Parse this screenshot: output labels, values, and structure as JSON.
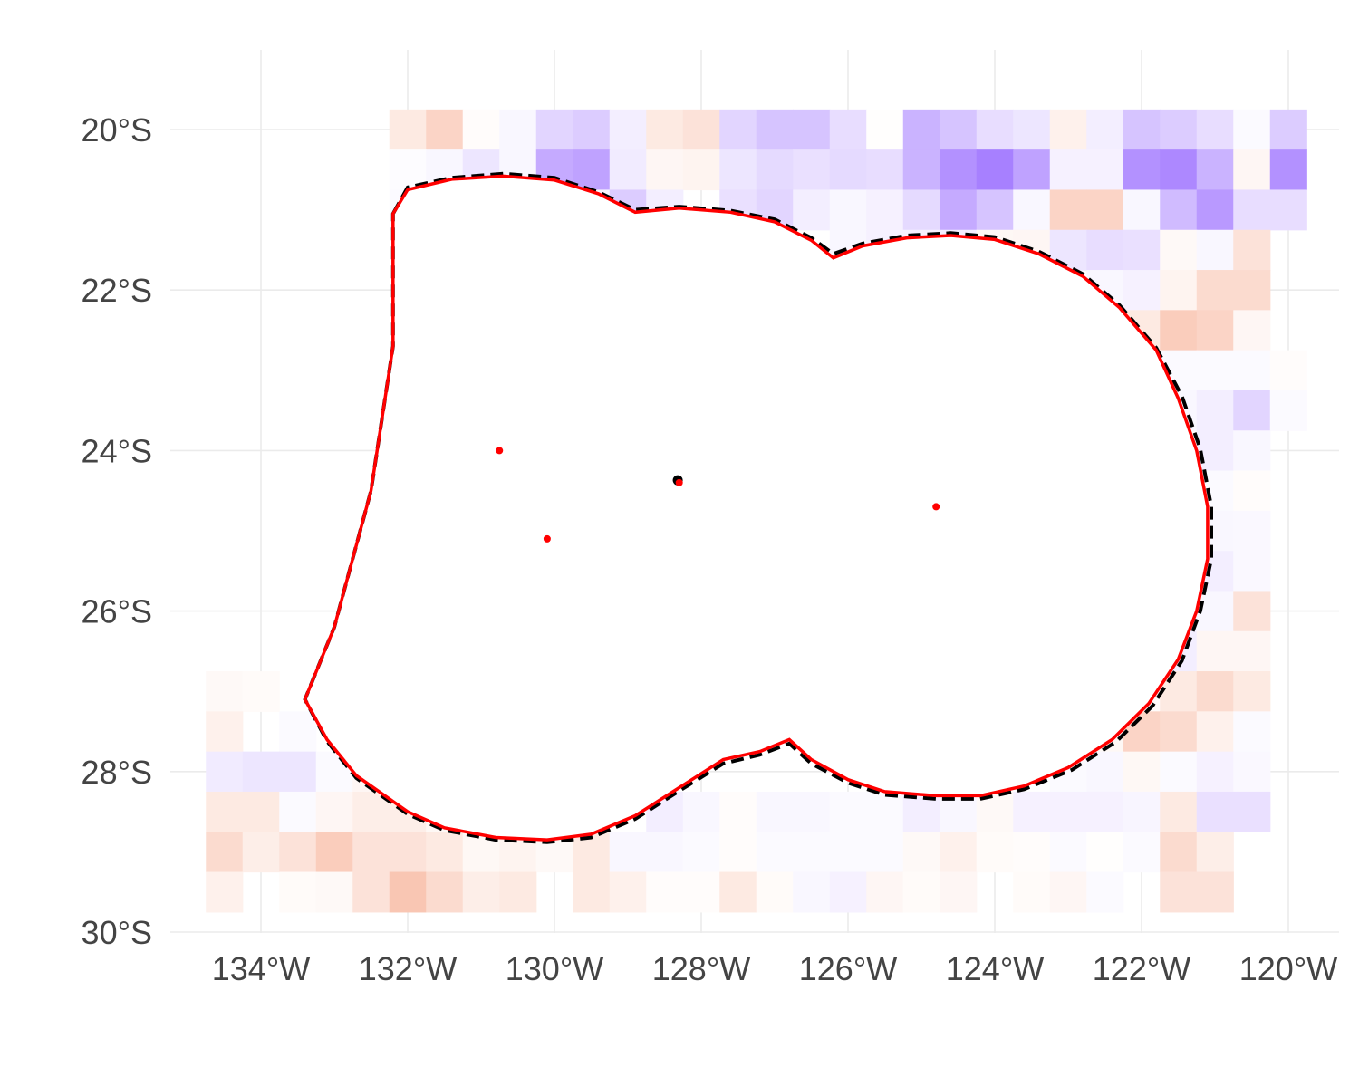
{
  "map": {
    "lon_range": [
      -135.2,
      -119.3
    ],
    "lat_range": [
      -30,
      -18.8
    ],
    "grid_lines": true,
    "colors": {
      "grid": "#ebebeb",
      "positive": "#f07040",
      "negative": "#8a55ff",
      "boundary": "#ff0000",
      "reference": "#000000"
    },
    "x_ticks": [
      {
        "value": -134,
        "label": "134°W"
      },
      {
        "value": -132,
        "label": "132°W"
      },
      {
        "value": -130,
        "label": "130°W"
      },
      {
        "value": -128,
        "label": "128°W"
      },
      {
        "value": -126,
        "label": "126°W"
      },
      {
        "value": -124,
        "label": "124°W"
      },
      {
        "value": -122,
        "label": "122°W"
      },
      {
        "value": -120,
        "label": "120°W"
      }
    ],
    "y_ticks": [
      {
        "value": -20,
        "label": "20°S"
      },
      {
        "value": -22,
        "label": "22°S"
      },
      {
        "value": -24,
        "label": "24°S"
      },
      {
        "value": -26,
        "label": "26°S"
      },
      {
        "value": -28,
        "label": "28°S"
      },
      {
        "value": -30,
        "label": "30°S"
      }
    ],
    "raster_rows": [
      {
        "lat": -20,
        "lon_start": -132,
        "values": [
          0.15,
          0.3,
          0.02,
          -0.05,
          -0.25,
          -0.3,
          -0.1,
          0.15,
          0.2,
          -0.25,
          -0.35,
          -0.35,
          -0.2,
          0.01,
          -0.45,
          -0.35,
          -0.2,
          -0.15,
          0.1,
          -0.1,
          -0.35,
          -0.3,
          -0.2,
          -0.03,
          -0.3
        ]
      },
      {
        "lat": -20.5,
        "lon_start": -132,
        "values": [
          -0.02,
          -0.05,
          -0.15,
          -0.05,
          -0.5,
          -0.55,
          -0.12,
          0.06,
          0.08,
          -0.15,
          -0.22,
          -0.18,
          -0.22,
          -0.2,
          -0.45,
          -0.65,
          -0.75,
          -0.55,
          -0.08,
          -0.08,
          -0.65,
          -0.7,
          -0.45,
          0.06,
          -0.65
        ]
      },
      {
        "lat": -21,
        "lon_start": -132,
        "values": [
          -0.03,
          -0.03,
          -0.03,
          null,
          -0.05,
          -0.05,
          -0.3,
          -0.1,
          null,
          -0.18,
          -0.25,
          -0.1,
          -0.05,
          -0.08,
          -0.22,
          -0.5,
          -0.35,
          -0.05,
          0.3,
          0.3,
          -0.05,
          -0.4,
          -0.6,
          -0.2,
          -0.2
        ]
      },
      {
        "lat": -21.5,
        "lon_start": -126,
        "values": [
          -0.05,
          -0.08,
          -0.08,
          -0.1,
          0.05,
          0.06,
          -0.15,
          -0.2,
          -0.18,
          0.04,
          -0.05,
          0.2
        ]
      },
      {
        "lat": -22,
        "lon_start": -122.5,
        "values": [
          -0.05,
          -0.08,
          0.08,
          0.25,
          0.25
        ]
      },
      {
        "lat": -22.5,
        "lon_start": -122,
        "values": [
          0.15,
          0.35,
          0.3,
          0.06
        ]
      },
      {
        "lat": -23,
        "lon_start": -121.5,
        "values": [
          -0.03,
          -0.03,
          -0.03,
          0.02
        ]
      },
      {
        "lat": -23.5,
        "lon_start": -121.5,
        "values": [
          -0.05,
          -0.1,
          -0.25,
          -0.03
        ]
      },
      {
        "lat": -24,
        "lon_start": -121,
        "values": [
          -0.1,
          -0.05
        ]
      },
      {
        "lat": -24.5,
        "lon_start": -121,
        "values": [
          -0.03,
          0.02
        ]
      },
      {
        "lat": -25,
        "lon_start": -121,
        "values": [
          -0.05,
          -0.04
        ]
      },
      {
        "lat": -25.5,
        "lon_start": -121,
        "values": [
          -0.1,
          -0.04
        ]
      },
      {
        "lat": -26,
        "lon_start": -121.5,
        "values": [
          -0.06,
          -0.05,
          0.2
        ]
      },
      {
        "lat": -26.5,
        "lon_start": -121.5,
        "values": [
          -0.1,
          0.06,
          0.06
        ]
      },
      {
        "lat": -27,
        "lon_start": -134.5,
        "values": [
          0.04,
          0.03
        ]
      },
      {
        "lat": -27,
        "lon_start": -122.5,
        "values": [
          0.03,
          0.02,
          0.15,
          0.25,
          0.15
        ]
      },
      {
        "lat": -27.5,
        "lon_start": -134.5,
        "values": [
          0.1,
          null,
          -0.03
        ]
      },
      {
        "lat": -27.5,
        "lon_start": -122.5,
        "values": [
          0.05,
          0.3,
          0.25,
          0.1,
          -0.03
        ]
      },
      {
        "lat": -28,
        "lon_start": -134.5,
        "values": [
          -0.12,
          -0.15,
          -0.15,
          -0.03,
          0.06
        ]
      },
      {
        "lat": -28,
        "lon_start": -123,
        "values": [
          -0.03,
          -0.05,
          0.05,
          -0.03,
          -0.08,
          -0.04
        ]
      },
      {
        "lat": -28.5,
        "lon_start": -134.5,
        "values": [
          0.15,
          0.15,
          -0.03,
          0.06,
          0.12,
          0.12,
          0.05
        ]
      },
      {
        "lat": -28.5,
        "lon_start": -128.5,
        "values": [
          -0.1,
          -0.05,
          0.02,
          -0.05,
          -0.05,
          -0.03,
          -0.03,
          -0.1,
          -0.05,
          0.04,
          -0.08,
          -0.08,
          -0.08,
          -0.06,
          0.15,
          -0.18,
          -0.18
        ]
      },
      {
        "lat": -29,
        "lon_start": -134.5,
        "values": [
          0.25,
          0.12,
          0.2,
          0.35,
          0.2,
          0.2,
          0.15,
          0.05,
          0.08,
          0.04,
          0.15,
          -0.05,
          -0.05,
          -0.03,
          0.02,
          -0.03,
          -0.03,
          -0.03,
          -0.03,
          0.04,
          0.1,
          0.03,
          0.02,
          -0.03,
          0.01,
          -0.03,
          0.25,
          0.12
        ]
      },
      {
        "lat": -29.5,
        "lon_start": -134.5,
        "values": [
          0.1,
          null,
          0.03,
          0.04,
          0.2,
          0.4,
          0.25,
          0.12,
          0.15,
          null,
          0.15,
          0.1,
          0.02,
          0.02,
          0.15,
          0.03,
          -0.05,
          -0.08,
          0.06,
          0.03,
          0.06,
          null,
          0.03,
          0.06,
          -0.03,
          null,
          0.2,
          0.2
        ]
      }
    ],
    "boundary_polygon": [
      [
        -132.2,
        -21.05
      ],
      [
        -132.0,
        -20.75
      ],
      [
        -131.4,
        -20.62
      ],
      [
        -130.7,
        -20.58
      ],
      [
        -130.0,
        -20.63
      ],
      [
        -129.4,
        -20.8
      ],
      [
        -128.9,
        -21.03
      ],
      [
        -128.3,
        -20.98
      ],
      [
        -127.6,
        -21.03
      ],
      [
        -127.0,
        -21.15
      ],
      [
        -126.5,
        -21.38
      ],
      [
        -126.2,
        -21.6
      ],
      [
        -125.8,
        -21.45
      ],
      [
        -125.2,
        -21.35
      ],
      [
        -124.6,
        -21.32
      ],
      [
        -124.0,
        -21.37
      ],
      [
        -123.4,
        -21.55
      ],
      [
        -122.8,
        -21.83
      ],
      [
        -122.3,
        -22.22
      ],
      [
        -121.8,
        -22.75
      ],
      [
        -121.5,
        -23.35
      ],
      [
        -121.25,
        -24.0
      ],
      [
        -121.1,
        -24.7
      ],
      [
        -121.1,
        -25.35
      ],
      [
        -121.25,
        -26.0
      ],
      [
        -121.5,
        -26.6
      ],
      [
        -121.9,
        -27.15
      ],
      [
        -122.4,
        -27.6
      ],
      [
        -123.0,
        -27.95
      ],
      [
        -123.6,
        -28.18
      ],
      [
        -124.2,
        -28.3
      ],
      [
        -124.8,
        -28.3
      ],
      [
        -125.5,
        -28.25
      ],
      [
        -126.0,
        -28.1
      ],
      [
        -126.5,
        -27.85
      ],
      [
        -126.8,
        -27.6
      ],
      [
        -127.2,
        -27.75
      ],
      [
        -127.7,
        -27.85
      ],
      [
        -128.3,
        -28.2
      ],
      [
        -128.9,
        -28.55
      ],
      [
        -129.5,
        -28.78
      ],
      [
        -130.1,
        -28.85
      ],
      [
        -130.8,
        -28.82
      ],
      [
        -131.5,
        -28.7
      ],
      [
        -132.0,
        -28.5
      ],
      [
        -132.7,
        -28.05
      ],
      [
        -133.1,
        -27.6
      ],
      [
        -133.4,
        -27.1
      ],
      [
        -133.0,
        -26.2
      ],
      [
        -132.5,
        -24.5
      ],
      [
        -132.2,
        -22.7
      ]
    ],
    "reference_polygon": [
      [
        -132.2,
        -21.05
      ],
      [
        -132.0,
        -20.72
      ],
      [
        -131.4,
        -20.6
      ],
      [
        -130.7,
        -20.55
      ],
      [
        -130.0,
        -20.6
      ],
      [
        -129.4,
        -20.78
      ],
      [
        -128.9,
        -21.0
      ],
      [
        -128.3,
        -20.96
      ],
      [
        -127.6,
        -21.01
      ],
      [
        -127.0,
        -21.12
      ],
      [
        -126.5,
        -21.35
      ],
      [
        -126.2,
        -21.55
      ],
      [
        -125.8,
        -21.42
      ],
      [
        -125.2,
        -21.32
      ],
      [
        -124.6,
        -21.29
      ],
      [
        -124.0,
        -21.34
      ],
      [
        -123.4,
        -21.52
      ],
      [
        -122.8,
        -21.8
      ],
      [
        -122.3,
        -22.19
      ],
      [
        -121.8,
        -22.72
      ],
      [
        -121.45,
        -23.32
      ],
      [
        -121.2,
        -23.98
      ],
      [
        -121.05,
        -24.7
      ],
      [
        -121.05,
        -25.35
      ],
      [
        -121.2,
        -26.0
      ],
      [
        -121.45,
        -26.62
      ],
      [
        -121.85,
        -27.18
      ],
      [
        -122.35,
        -27.63
      ],
      [
        -122.95,
        -27.98
      ],
      [
        -123.6,
        -28.22
      ],
      [
        -124.2,
        -28.34
      ],
      [
        -124.8,
        -28.34
      ],
      [
        -125.5,
        -28.29
      ],
      [
        -126.0,
        -28.14
      ],
      [
        -126.5,
        -27.9
      ],
      [
        -126.8,
        -27.65
      ],
      [
        -127.2,
        -27.79
      ],
      [
        -127.7,
        -27.9
      ],
      [
        -128.3,
        -28.24
      ],
      [
        -128.9,
        -28.59
      ],
      [
        -129.5,
        -28.82
      ],
      [
        -130.1,
        -28.88
      ],
      [
        -130.8,
        -28.85
      ],
      [
        -131.5,
        -28.73
      ],
      [
        -132.0,
        -28.53
      ],
      [
        -132.7,
        -28.08
      ],
      [
        -133.1,
        -27.62
      ],
      [
        -133.4,
        -27.1
      ],
      [
        -133.0,
        -26.2
      ],
      [
        -132.5,
        -24.5
      ],
      [
        -132.2,
        -22.7
      ]
    ],
    "boundary_dots": [
      [
        -130.75,
        -24.0
      ],
      [
        -130.1,
        -25.1
      ],
      [
        -124.8,
        -24.7
      ],
      [
        -128.3,
        -24.4
      ]
    ],
    "reference_dots": [
      [
        -128.32,
        -24.37
      ]
    ]
  }
}
